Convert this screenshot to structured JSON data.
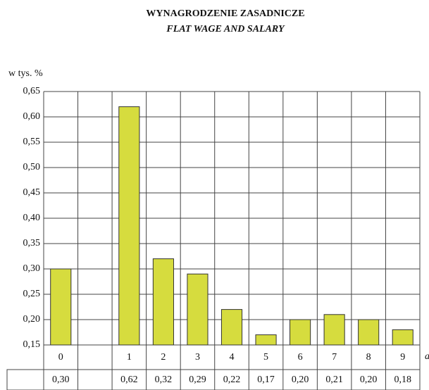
{
  "chart_data": {
    "type": "bar",
    "title": "WYNAGRODZENIE ZASADNICZE",
    "subtitle": "FLAT WAGE AND SALARY",
    "y_label": "w tys. %",
    "x_label": "a",
    "categories": [
      "0",
      null,
      "1",
      "2",
      "3",
      "4",
      "5",
      "6",
      "7",
      "8",
      "9"
    ],
    "values": [
      0.3,
      null,
      0.62,
      0.32,
      0.29,
      0.22,
      0.17,
      0.2,
      0.21,
      0.2,
      0.18
    ],
    "value_labels": [
      "0,30",
      null,
      "0,62",
      "0,32",
      "0,29",
      "0,22",
      "0,17",
      "0,20",
      "0,21",
      "0,20",
      "0,18"
    ],
    "color": "#d6dc3e",
    "ylim": [
      0.15,
      0.65
    ],
    "yticks": [
      {
        "value": 0.15,
        "label": "0,15"
      },
      {
        "value": 0.2,
        "label": "0,20"
      },
      {
        "value": 0.25,
        "label": "0,25"
      },
      {
        "value": 0.3,
        "label": "0,30"
      },
      {
        "value": 0.35,
        "label": "0,35"
      },
      {
        "value": 0.4,
        "label": "0,40"
      },
      {
        "value": 0.45,
        "label": "0,45"
      },
      {
        "value": 0.5,
        "label": "0,50"
      },
      {
        "value": 0.55,
        "label": "0,55"
      },
      {
        "value": 0.6,
        "label": "0,60"
      },
      {
        "value": 0.65,
        "label": "0,65"
      }
    ],
    "grid": true
  }
}
